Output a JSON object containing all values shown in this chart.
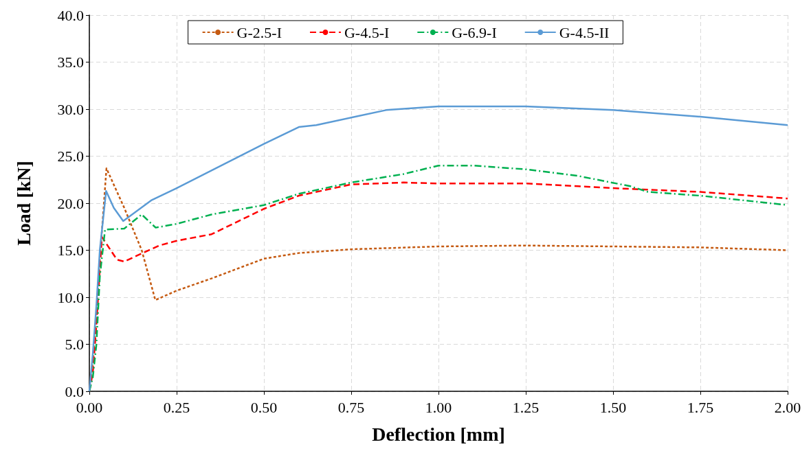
{
  "chart_data": {
    "type": "line",
    "xlabel": "Deflection [mm]",
    "ylabel": "Load [kN]",
    "xlim": [
      0,
      2
    ],
    "ylim": [
      0,
      40
    ],
    "xticks": [
      {
        "value": 0,
        "label": "0.00"
      },
      {
        "value": 0.25,
        "label": "0.25"
      },
      {
        "value": 0.5,
        "label": "0.50"
      },
      {
        "value": 0.75,
        "label": "0.75"
      },
      {
        "value": 1,
        "label": "1.00"
      },
      {
        "value": 1.25,
        "label": "1.25"
      },
      {
        "value": 1.5,
        "label": "1.50"
      },
      {
        "value": 1.75,
        "label": "1.75"
      },
      {
        "value": 2,
        "label": "2.00"
      }
    ],
    "yticks": [
      {
        "value": 0,
        "label": "0.0"
      },
      {
        "value": 5,
        "label": "5.0"
      },
      {
        "value": 10,
        "label": "10.0"
      },
      {
        "value": 15,
        "label": "15.0"
      },
      {
        "value": 20,
        "label": "20.0"
      },
      {
        "value": 25,
        "label": "25.0"
      },
      {
        "value": 30,
        "label": "30.0"
      },
      {
        "value": 35,
        "label": "35.0"
      },
      {
        "value": 40,
        "label": "40.0"
      }
    ],
    "grid": true,
    "legend": "top",
    "marker": "none",
    "series": [
      {
        "name": "G-2.5-I",
        "color": "#c55a11",
        "line_style": "dotted",
        "x": [
          0,
          0.01,
          0.02,
          0.03,
          0.049,
          0.1,
          0.15,
          0.189,
          0.25,
          0.35,
          0.5,
          0.6,
          0.75,
          1.0,
          1.25,
          1.5,
          1.75,
          2.0
        ],
        "values": [
          0,
          3,
          8,
          14,
          23.7,
          19.5,
          15,
          9.7,
          10.7,
          12,
          14.1,
          14.7,
          15.1,
          15.4,
          15.5,
          15.4,
          15.3,
          15.0
        ]
      },
      {
        "name": "G-4.5-I",
        "color": "#ff0000",
        "line_style": "dashed",
        "x": [
          0,
          0.01,
          0.02,
          0.03,
          0.036,
          0.079,
          0.1,
          0.2,
          0.25,
          0.35,
          0.5,
          0.6,
          0.75,
          0.9,
          1.0,
          1.25,
          1.4,
          1.5,
          1.75,
          2.0
        ],
        "values": [
          0,
          2,
          7,
          13,
          16.4,
          14.0,
          13.8,
          15.5,
          16.0,
          16.7,
          19.4,
          20.8,
          22.0,
          22.2,
          22.1,
          22.1,
          21.8,
          21.6,
          21.2,
          20.5
        ]
      },
      {
        "name": "G-6.9-I",
        "color": "#00b050",
        "line_style": "dashdot",
        "x": [
          0,
          0.01,
          0.02,
          0.03,
          0.045,
          0.1,
          0.15,
          0.19,
          0.25,
          0.35,
          0.5,
          0.6,
          0.75,
          0.9,
          1.0,
          1.1,
          1.25,
          1.4,
          1.55,
          1.6,
          1.75,
          2.0
        ],
        "values": [
          0,
          1.5,
          4.9,
          12.2,
          17.2,
          17.3,
          18.8,
          17.4,
          17.8,
          18.8,
          19.8,
          21.0,
          22.2,
          23.1,
          24.0,
          24.0,
          23.6,
          22.9,
          21.8,
          21.2,
          20.8,
          19.8
        ]
      },
      {
        "name": "G-4.5-II",
        "color": "#5b9bd5",
        "line_style": "solid",
        "x": [
          0,
          0.01,
          0.02,
          0.03,
          0.048,
          0.07,
          0.097,
          0.177,
          0.25,
          0.5,
          0.6,
          0.65,
          0.75,
          0.85,
          1.0,
          1.25,
          1.5,
          1.75,
          2.0
        ],
        "values": [
          0,
          4,
          9,
          15,
          21.3,
          19.5,
          18.1,
          20.3,
          21.6,
          26.3,
          28.1,
          28.3,
          29.1,
          29.9,
          30.3,
          30.3,
          29.9,
          29.2,
          28.3
        ]
      }
    ]
  }
}
